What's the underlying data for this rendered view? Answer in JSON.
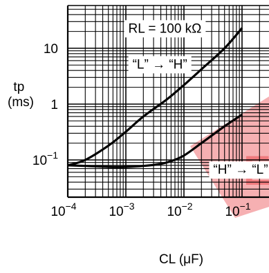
{
  "chart_data": {
    "type": "line",
    "xscale": "log",
    "yscale": "log",
    "xlim": [
      0.0001,
      0.2
    ],
    "ylim": [
      0.01,
      50
    ],
    "xlabel": "CL (μF)",
    "ylabel": "tp\n(ms)",
    "x_ticks": [
      {
        "value": 0.0001,
        "base": "10",
        "exp": "−4"
      },
      {
        "value": 0.001,
        "base": "10",
        "exp": "−3"
      },
      {
        "value": 0.01,
        "base": "10",
        "exp": "−2"
      },
      {
        "value": 0.1,
        "base": "10",
        "exp": "−1"
      }
    ],
    "y_ticks": [
      {
        "value": 10,
        "base": "10",
        "exp": ""
      },
      {
        "value": 1,
        "base": "1",
        "exp": ""
      },
      {
        "value": 0.1,
        "base": "10",
        "exp": "−1"
      }
    ],
    "grid": true,
    "annotations": [
      {
        "text": "RL = 100 kΩ",
        "x": 0.0011,
        "y": 22
      },
      {
        "text": "“L” → “H”",
        "x": 0.0013,
        "y": 5.0
      },
      {
        "text": "“H” → “L”",
        "x": 0.032,
        "y": 0.065
      }
    ],
    "series": [
      {
        "label": "“L” → “H”",
        "x": [
          0.0001,
          0.0002,
          0.0005,
          0.001,
          0.002,
          0.005,
          0.01,
          0.02,
          0.05,
          0.1
        ],
        "y": [
          0.08,
          0.1,
          0.18,
          0.32,
          0.6,
          1.2,
          2.2,
          4.2,
          10,
          23
        ]
      },
      {
        "label": "“H” → “L”",
        "x": [
          0.0001,
          0.0002,
          0.0005,
          0.001,
          0.002,
          0.004,
          0.006,
          0.01,
          0.02,
          0.05,
          0.1
        ],
        "y": [
          0.08,
          0.078,
          0.075,
          0.075,
          0.078,
          0.085,
          0.095,
          0.12,
          0.2,
          0.4,
          0.65
        ]
      }
    ]
  },
  "watermark": {
    "color": "#e83a3f",
    "text": "E"
  }
}
